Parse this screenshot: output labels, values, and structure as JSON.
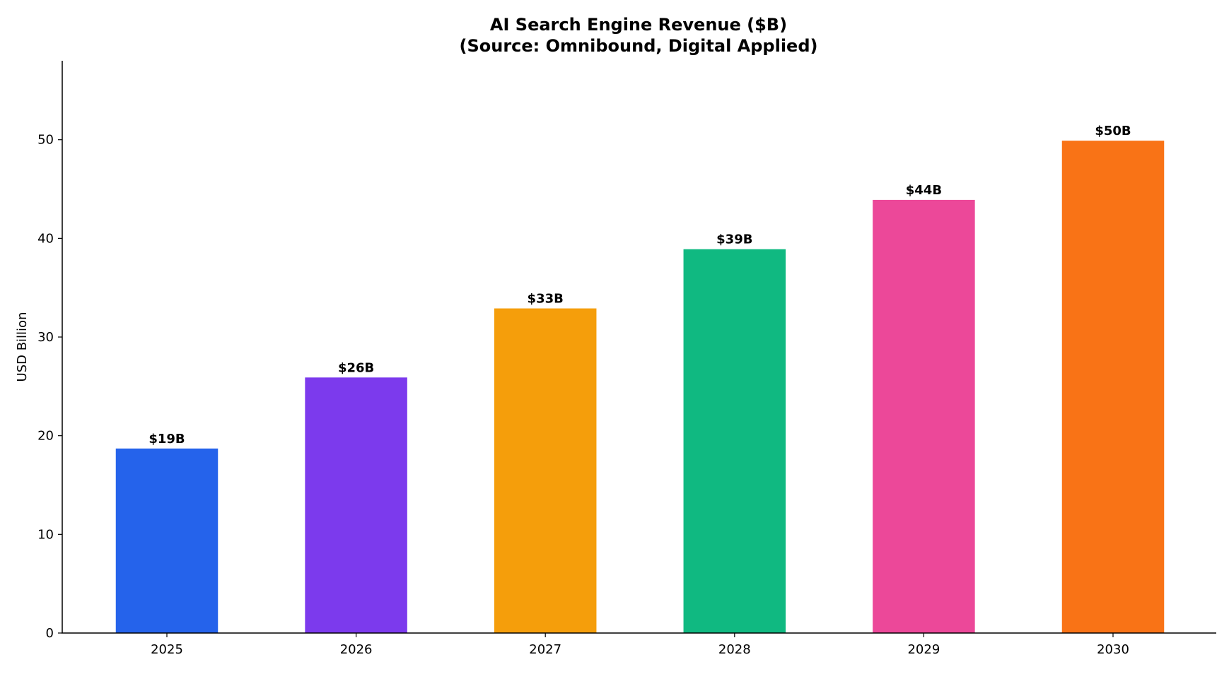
{
  "chart_data": {
    "type": "bar",
    "title_lines": [
      "AI Search Engine Revenue ($B)",
      "(Source: Omnibound, Digital Applied)"
    ],
    "xlabel": "",
    "ylabel": "USD Billion",
    "categories": [
      "2025",
      "2026",
      "2027",
      "2028",
      "2029",
      "2030"
    ],
    "values": [
      18.7,
      25.9,
      32.9,
      38.9,
      43.9,
      49.9
    ],
    "data_labels": [
      "$19B",
      "$26B",
      "$33B",
      "$39B",
      "$44B",
      "$50B"
    ],
    "bar_colors": [
      "#2563eb",
      "#7c3aed",
      "#f59e0b",
      "#10b981",
      "#ec4899",
      "#f97316"
    ],
    "ylim": [
      0,
      58
    ],
    "yticks": [
      0,
      10,
      20,
      30,
      40,
      50
    ],
    "grid": false,
    "legend": "none"
  }
}
